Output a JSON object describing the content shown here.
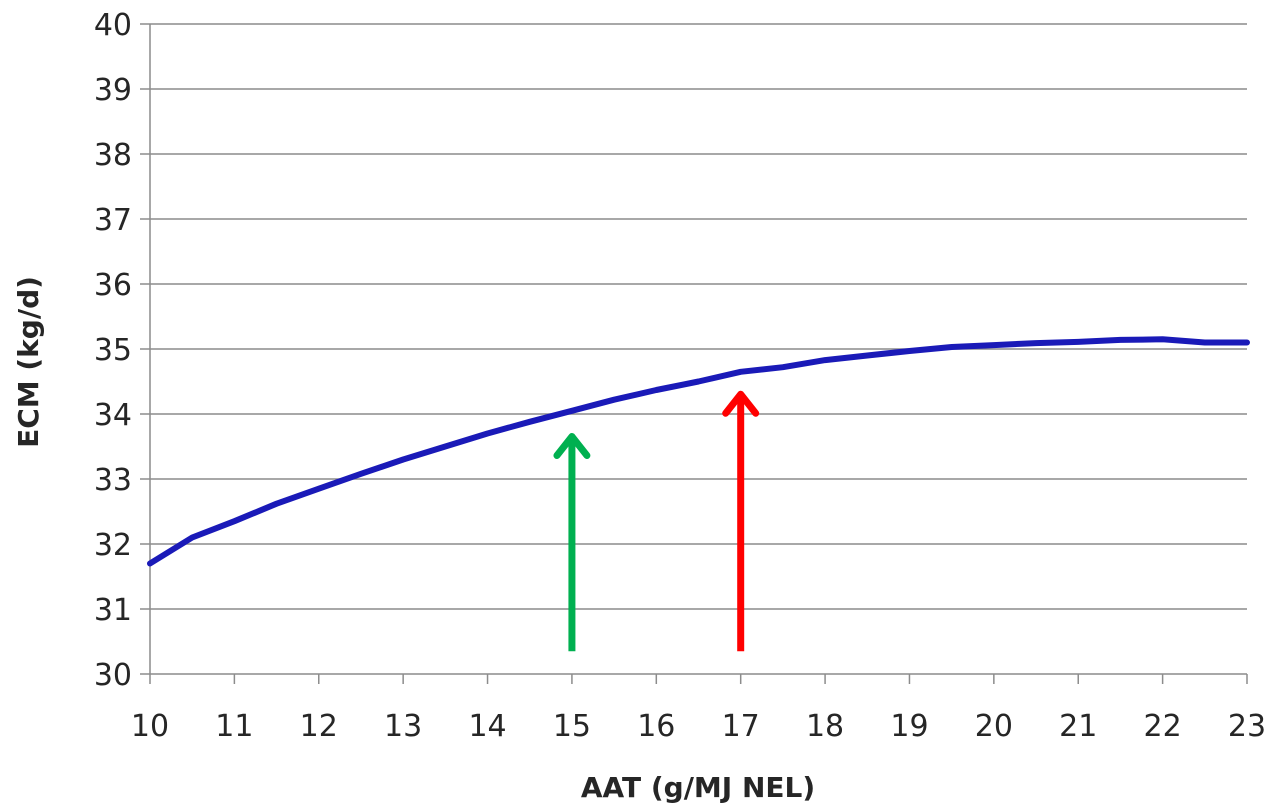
{
  "chart_data": {
    "type": "line",
    "title": "",
    "xlabel": "AAT (g/MJ NEL)",
    "ylabel": "ECM (kg/d)",
    "xlim": [
      10,
      23
    ],
    "ylim": [
      30,
      40
    ],
    "x_ticks": [
      "10",
      "11",
      "12",
      "13",
      "14",
      "15",
      "16",
      "17",
      "18",
      "19",
      "20",
      "21",
      "22",
      "23"
    ],
    "y_ticks": [
      "30",
      "31",
      "32",
      "33",
      "34",
      "35",
      "36",
      "37",
      "38",
      "39",
      "40"
    ],
    "grid": "horizontal",
    "legend": "none",
    "series": [
      {
        "color": "#1a1ab8",
        "x": [
          10,
          10.5,
          11,
          11.5,
          12,
          12.5,
          13,
          13.5,
          14,
          14.5,
          15,
          15.5,
          16,
          16.5,
          17,
          17.5,
          18,
          18.5,
          19,
          19.5,
          20,
          20.5,
          21,
          21.5,
          22,
          22.5,
          23
        ],
        "y": [
          31.7,
          32.1,
          32.35,
          32.62,
          32.85,
          33.08,
          33.3,
          33.5,
          33.7,
          33.88,
          34.05,
          34.22,
          34.37,
          34.5,
          34.65,
          34.72,
          34.83,
          34.9,
          34.97,
          35.03,
          35.06,
          35.09,
          35.11,
          35.14,
          35.15,
          35.1,
          35.1
        ]
      }
    ],
    "annotations": [
      {
        "type": "arrow",
        "x": 15,
        "y_from": 30.35,
        "y_to": 33.7,
        "color": "#00b050"
      },
      {
        "type": "arrow",
        "x": 17,
        "y_from": 30.35,
        "y_to": 34.35,
        "color": "#ff0000"
      }
    ]
  }
}
